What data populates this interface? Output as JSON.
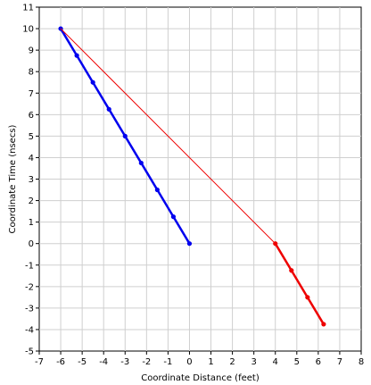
{
  "chart_data": {
    "type": "line",
    "xlabel": "Coordinate Distance (feet)",
    "ylabel": "Coordinate Time (nsecs)",
    "xlim": [
      -7,
      8
    ],
    "ylim": [
      -5,
      11
    ],
    "x_ticks": [
      -7,
      -6,
      -5,
      -4,
      -3,
      -2,
      -1,
      0,
      1,
      2,
      3,
      4,
      5,
      6,
      7,
      8
    ],
    "y_ticks": [
      -5,
      -4,
      -3,
      -2,
      -1,
      0,
      1,
      2,
      3,
      4,
      5,
      6,
      7,
      8,
      9,
      10,
      11
    ],
    "grid": true,
    "series": [
      {
        "color": "#0000ee",
        "line_width": "thick",
        "markers": true,
        "points": [
          [
            -6,
            10
          ],
          [
            -5.25,
            8.75
          ],
          [
            -4.5,
            7.5
          ],
          [
            -3.75,
            6.25
          ],
          [
            -3,
            5
          ],
          [
            -2.25,
            3.75
          ],
          [
            -1.5,
            2.5
          ],
          [
            -0.75,
            1.25
          ],
          [
            0,
            0
          ]
        ]
      },
      {
        "color": "#ee0000",
        "line_width": "thin",
        "markers": false,
        "points": [
          [
            -6,
            10
          ],
          [
            4,
            0
          ]
        ]
      },
      {
        "color": "#ee0000",
        "line_width": "thick",
        "markers": true,
        "points": [
          [
            4,
            0
          ],
          [
            4.75,
            -1.25
          ],
          [
            5.5,
            -2.5
          ],
          [
            6.25,
            -3.75
          ]
        ]
      }
    ]
  }
}
